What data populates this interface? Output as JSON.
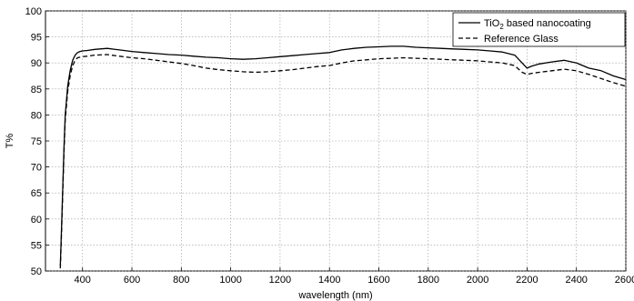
{
  "chart_data": {
    "type": "line",
    "title": "",
    "xlabel": "wavelength (nm)",
    "ylabel": "T%",
    "xlim": [
      250,
      2600
    ],
    "ylim": [
      50,
      100
    ],
    "xticks": [
      400,
      600,
      800,
      1000,
      1200,
      1400,
      1600,
      1800,
      2000,
      2200,
      2400,
      2600
    ],
    "yticks": [
      50,
      55,
      60,
      65,
      70,
      75,
      80,
      85,
      90,
      95,
      100
    ],
    "grid": true,
    "legend_position": "top-right",
    "series": [
      {
        "name": "TiO2 based nanocoating",
        "name_parts": [
          "TiO",
          "2",
          " based nanocoating"
        ],
        "style": "solid",
        "color": "#000000",
        "x": [
          310,
          315,
          320,
          325,
          330,
          340,
          350,
          360,
          370,
          380,
          390,
          400,
          420,
          450,
          500,
          550,
          600,
          650,
          700,
          750,
          800,
          850,
          900,
          950,
          1000,
          1050,
          1100,
          1150,
          1200,
          1250,
          1300,
          1350,
          1400,
          1450,
          1500,
          1550,
          1600,
          1650,
          1700,
          1750,
          1800,
          1850,
          1900,
          1950,
          2000,
          2050,
          2100,
          2150,
          2180,
          2200,
          2220,
          2250,
          2300,
          2350,
          2400,
          2450,
          2500,
          2550,
          2600
        ],
        "y": [
          51,
          58,
          66,
          74,
          80,
          85.5,
          88.5,
          90.5,
          91.5,
          92,
          92.2,
          92.3,
          92.4,
          92.6,
          92.8,
          92.5,
          92.2,
          92.0,
          91.8,
          91.6,
          91.5,
          91.3,
          91.1,
          91.0,
          90.8,
          90.7,
          90.8,
          91.0,
          91.2,
          91.4,
          91.6,
          91.8,
          92.0,
          92.5,
          92.8,
          93.0,
          93.1,
          93.2,
          93.2,
          93.0,
          92.9,
          92.8,
          92.7,
          92.6,
          92.5,
          92.3,
          92.1,
          91.5,
          90.0,
          89.0,
          89.4,
          89.8,
          90.2,
          90.5,
          90.0,
          89.0,
          88.5,
          87.5,
          86.8
        ]
      },
      {
        "name": "Reference Glass",
        "style": "dashed",
        "color": "#000000",
        "x": [
          310,
          315,
          320,
          325,
          330,
          340,
          350,
          360,
          370,
          380,
          390,
          400,
          420,
          450,
          500,
          550,
          600,
          650,
          700,
          750,
          800,
          850,
          900,
          950,
          1000,
          1050,
          1100,
          1150,
          1200,
          1250,
          1300,
          1350,
          1400,
          1450,
          1500,
          1550,
          1600,
          1650,
          1700,
          1750,
          1800,
          1850,
          1900,
          1950,
          2000,
          2050,
          2100,
          2150,
          2180,
          2200,
          2220,
          2250,
          2300,
          2350,
          2400,
          2450,
          2500,
          2550,
          2600
        ],
        "y": [
          50.5,
          57,
          65,
          73,
          79,
          84.5,
          87.5,
          89.5,
          90.5,
          91,
          91.1,
          91.2,
          91.3,
          91.5,
          91.6,
          91.3,
          91.0,
          90.8,
          90.5,
          90.2,
          89.9,
          89.5,
          89.0,
          88.7,
          88.5,
          88.3,
          88.2,
          88.3,
          88.5,
          88.7,
          89.0,
          89.3,
          89.5,
          90.0,
          90.4,
          90.6,
          90.8,
          90.9,
          91.0,
          90.9,
          90.8,
          90.7,
          90.6,
          90.5,
          90.4,
          90.2,
          90.0,
          89.5,
          88.2,
          87.8,
          88.0,
          88.2,
          88.5,
          88.8,
          88.5,
          87.8,
          87.0,
          86.2,
          85.5
        ]
      }
    ]
  }
}
